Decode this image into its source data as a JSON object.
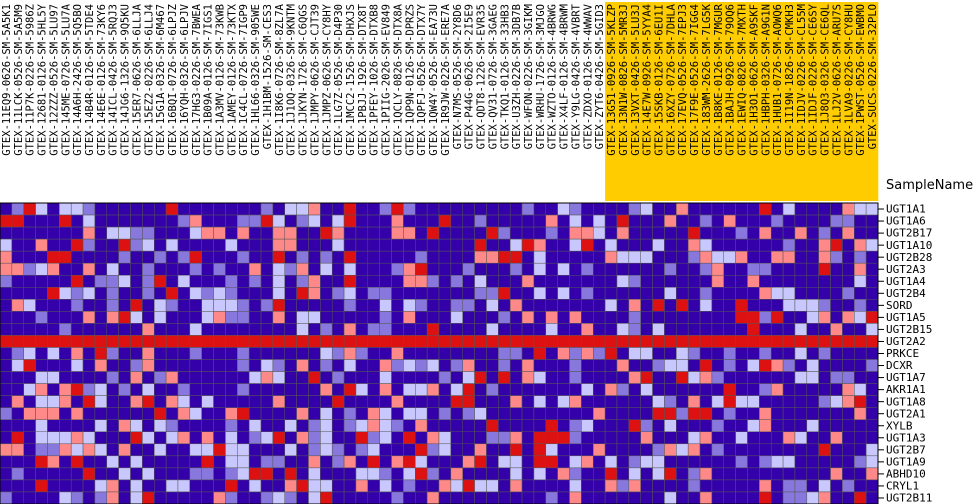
{
  "chart_data": {
    "type": "heatmap",
    "header_label": "SampleName",
    "highlight_color": "#ffcc00",
    "colors": {
      "low": "#3300aa",
      "lowmid": "#8877dd",
      "mid": "#c8c8ff",
      "high": "#ff8888",
      "max": "#dd1111"
    },
    "samples": [
      "GTEX-11EQ9-0626-SM-5A5K1",
      "GTEX-11LCK-0526-SM-5A5M9",
      "GTEX-11P7K-0226-SM-5986Z",
      "GTEX-12681-0126-SM-5HL5Y",
      "GTEX-12ZZZ-0526-SM-5LU97",
      "GTEX-145ME-0726-SM-5LU7A",
      "GTEX-14A6H-2426-SM-5Q5BO",
      "GTEX-14B4R-0126-SM-5TDE4",
      "GTEX-14E6E-0126-SM-73KY6",
      "GTEX-14ICL-0426-SM-5RQJ3",
      "GTEX-14JG6-1326-SM-9Q5KU",
      "GTEX-15ER7-0626-SM-6LLJA",
      "GTEX-15EZ2-0226-SM-6LLJ4",
      "GTEX-15G1A-0326-SM-6M467",
      "GTEX-16BQI-0726-SM-6LPJZ",
      "GTEX-16YQH-0326-SM-6LPJV",
      "GTEX-17HG3-0226-SM-7BWEA",
      "GTEX-1B09A-0126-SM-7IGS1",
      "GTEX-1A3MV-0126-SM-73KWB",
      "GTEX-1AMEY-0126-SM-73KTX",
      "GTEX-1C4CL-0726-SM-7IGP9",
      "GTEX-1HL66-0326-SM-905WE",
      "GTEX-1H1BM-1526-SM-CES3",
      "GTEX-1I8K6-0726-SM-8ZL7A",
      "GTEX-1J1OQ-0326-SM-9KNTM",
      "GTEX-1JKYN-1726-SM-C6QGS",
      "GTEX-1JMPY-0626-SM-CJT39",
      "GTEX-1JMPZ-0626-SM-CY8HY",
      "GTEX-1LG7Z-0526-SM-D4P30",
      "GTEX-1MCC2-1526-SM-DHXJS",
      "GTEX-1PBJJ-1926-SM-DTX8T",
      "GTEX-1PFEY-1026-SM-DTXB8",
      "GTEX-1PIIG-2026-SM-EV849",
      "GTEX-1QCLY-0826-SM-DTX8A",
      "GTEX-1QP9N-0126-SM-DPRZS",
      "GTEX-1QPFJ-0526-SM-DTX7Y",
      "GTEX-1QW4Y-0526-SM-EA73U",
      "GTEX-1R9JW-0226-SM-ERE7A",
      "GTEX-N7MS-0526-SM-2Y8D6",
      "GTEX-P44G-0626-SM-2I5E9",
      "GTEX-QDT8-1226-SM-EVR35",
      "GTEX-QV31-0726-SM-3GAEG",
      "GTEX-TKQ1-0126-SM-33HB3",
      "GTEX-U3ZH-0226-SM-3DB7B",
      "GTEX-WFON-0226-SM-3GIKM",
      "GTEX-WRHU-1726-SM-3MJGO",
      "GTEX-WZTO-0126-SM-4BRWG",
      "GTEX-X4LF-0126-SM-4BRWM",
      "GTEX-Y9LG-0426-SM-4VBRT",
      "GTEX-ZDXO-0126-SM-4WWAV",
      "GTEX-ZYT6-0426-SM-5GID3",
      "GTEX-13G51-0926-SM-5KLZP",
      "GTEX-13N1W-0826-SM-5MR3J",
      "GTEX-13VXT-0426-SM-5LU3J",
      "GTEX-14E7W-0926-SM-5YYA4",
      "GTEX-15SKB-0126-SM-6EU1I",
      "GTEX-16XZY-0726-SM-7DHLA",
      "GTEX-17EVQ-0526-SM-7EPJ3",
      "GTEX-17F9E-0526-SM-7IGG4",
      "GTEX-183WM-2626-SM-7LG5K",
      "GTEX-1B8KE-0126-SM-7MGUR",
      "GTEX-1BAJH-0926-SM-79OQ6",
      "GTEX-1EWIQ-0826-SM-7MXTH",
      "GTEX-1H3O1-0626-SM-A9SKF",
      "GTEX-1HBPH-0326-SM-A9G1N",
      "GTEX-1HUB1-0726-SM-AOWQ6",
      "GTEX-1I19N-1826-SM-CMKH3",
      "GTEX-1IDJV-0226-SM-CL55M",
      "GTEX-1IDJF-0226-SM-CE6SY",
      "GTEX-1J8Q3-0326-SM-CE6QL",
      "GTEX-1LJ2V-0626-SM-ARU7S",
      "GTEX-1LVA9-0226-SM-CY8HU",
      "GTEX-1PWST-0526-SM-EWBMO",
      "GTEX-SUCS-0226-SM-32PLO"
    ],
    "n_highlight": 23,
    "genes": [
      "UGT1A1",
      "UGT1A6",
      "UGT2B17",
      "UGT1A10",
      "UGT2B28",
      "UGT2A3",
      "UGT1A4",
      "UGT2B4",
      "SORD",
      "UGT1A5",
      "UGT2B15",
      "UGT2A2",
      "PRKCE",
      "DCXR",
      "UGT1A7",
      "AKR1A1",
      "UGT1A8",
      "UGT2A1",
      "XYLB",
      "UGT1A3",
      "UGT2B7",
      "UGT1A9",
      "ABHD10",
      "CRYL1",
      "UGT2B11"
    ]
  }
}
